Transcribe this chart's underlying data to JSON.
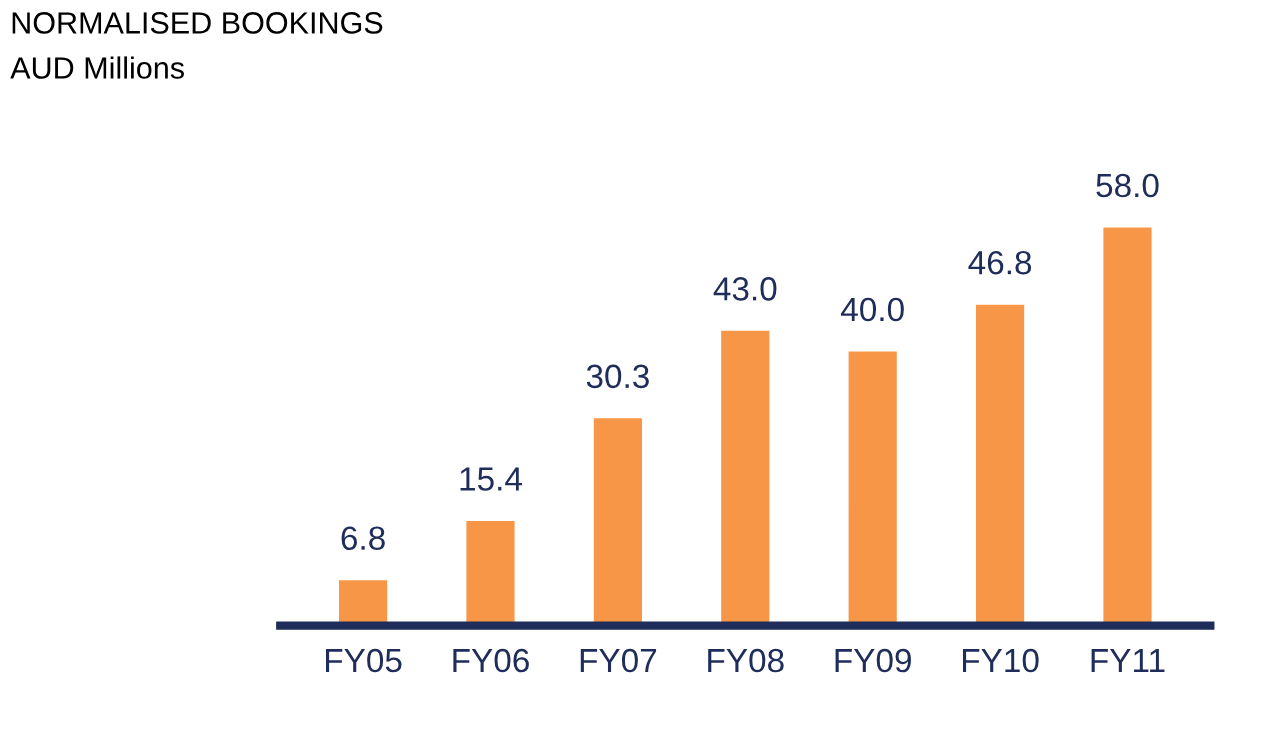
{
  "chart_data": {
    "type": "bar",
    "title": "NORMALISED BOOKINGS",
    "subtitle": "AUD Millions",
    "categories": [
      "FY05",
      "FY06",
      "FY07",
      "FY08",
      "FY09",
      "FY10",
      "FY11"
    ],
    "values": [
      6.8,
      15.4,
      30.3,
      43.0,
      40.0,
      46.8,
      58.0
    ],
    "value_labels": [
      "6.8",
      "15.4",
      "30.3",
      "43.0",
      "40.0",
      "46.8",
      "58.0"
    ],
    "color": "#f79646"
  }
}
